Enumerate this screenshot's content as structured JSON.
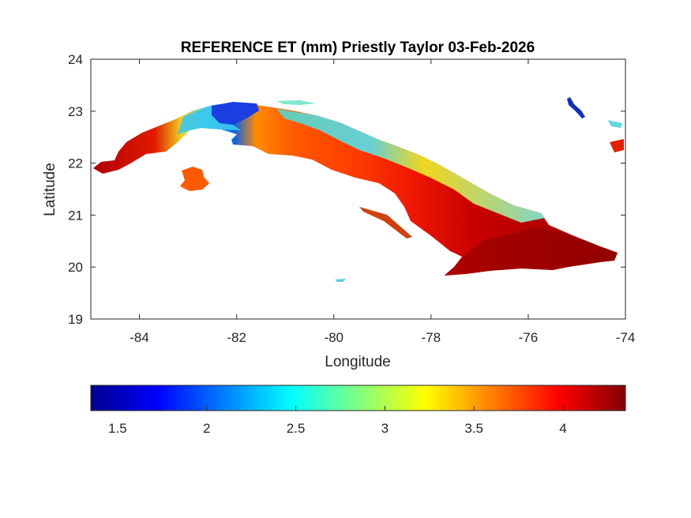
{
  "title": "REFERENCE ET (mm) Priestly Taylor 03-Feb-2026",
  "map": {
    "xlabel": "Longitude",
    "ylabel": "Latitude",
    "xlim": [
      -85,
      -74
    ],
    "ylim": [
      19,
      24
    ],
    "xticks": [
      -84,
      -82,
      -80,
      -78,
      -76,
      -74
    ],
    "yticks": [
      19,
      20,
      21,
      22,
      23,
      24
    ],
    "xtick_labels": [
      "-84",
      "-82",
      "-80",
      "-78",
      "-76",
      "-74"
    ],
    "ytick_labels": [
      "19",
      "20",
      "21",
      "22",
      "23",
      "24"
    ],
    "colorbar": {
      "colormap": "jet",
      "range": [
        1.35,
        4.35
      ],
      "ticks": [
        1.5,
        2,
        2.5,
        3,
        3.5,
        4
      ],
      "tick_labels": [
        "1.5",
        "2",
        "2.5",
        "3",
        "3.5",
        "4"
      ]
    }
  }
}
